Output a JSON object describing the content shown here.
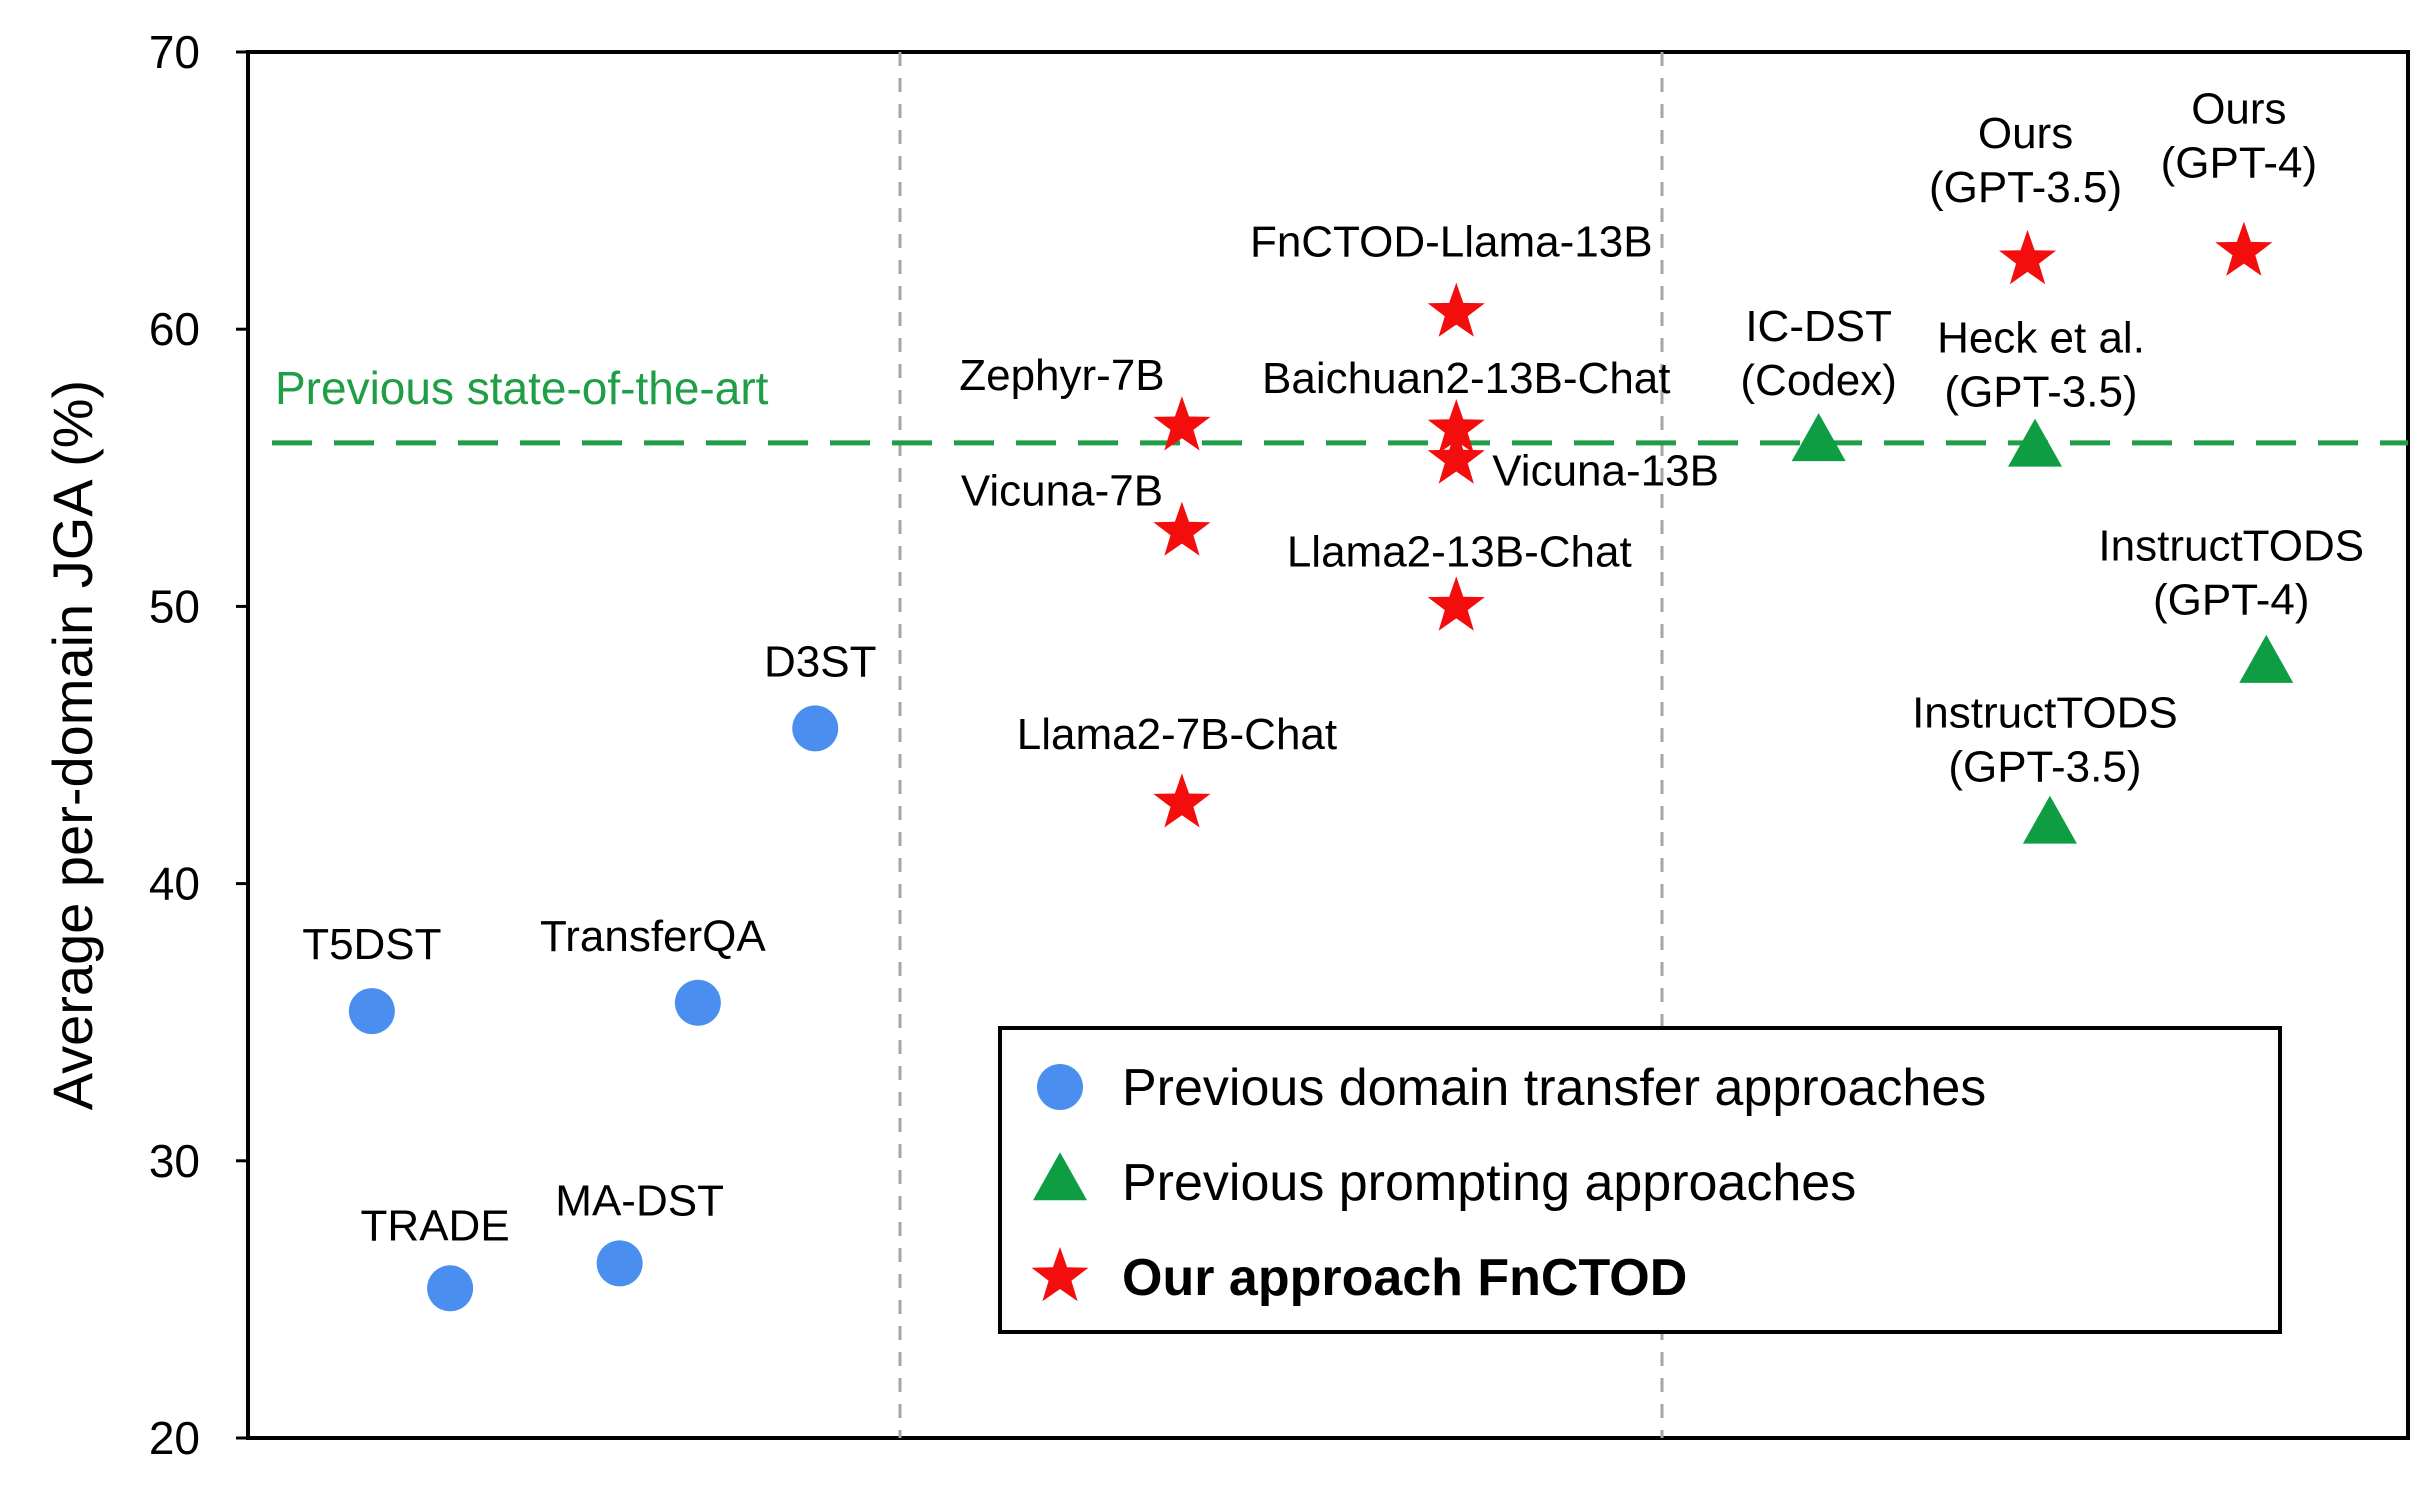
{
  "chart_data": {
    "type": "scatter",
    "ylabel": "Average per-domain JGA (%)",
    "ylim": [
      20,
      70
    ],
    "yticks": [
      20,
      30,
      40,
      50,
      60,
      70
    ],
    "grid": false,
    "legend_position": "bottom-right",
    "colors": {
      "domain_transfer": "#4a8ff0",
      "prompting": "#0f9d44",
      "fnctod": "#f40d0d",
      "reference": "#1e9e45",
      "divider": "#a6a6a6"
    },
    "reference_line": {
      "y": 55.9,
      "label": "Previous state-of-the-art"
    },
    "legend": [
      {
        "series": "domain_transfer",
        "label": "Previous domain transfer approaches",
        "marker": "circle"
      },
      {
        "series": "prompting",
        "label": "Previous prompting approaches",
        "marker": "triangle"
      },
      {
        "series": "fnctod",
        "label": "Our approach FnCTOD",
        "marker": "star",
        "bold": true
      }
    ],
    "points": [
      {
        "series": "domain_transfer",
        "group": 1,
        "x": 0.19,
        "y": 35.4,
        "label": [
          "T5DST"
        ]
      },
      {
        "series": "domain_transfer",
        "group": 1,
        "x": 0.31,
        "y": 25.4,
        "label": [
          "TRADE"
        ]
      },
      {
        "series": "domain_transfer",
        "group": 1,
        "x": 0.57,
        "y": 26.3,
        "label": [
          "MA-DST"
        ]
      },
      {
        "series": "domain_transfer",
        "group": 1,
        "x": 0.69,
        "y": 35.7,
        "label": [
          "TransferQA"
        ]
      },
      {
        "series": "domain_transfer",
        "group": 1,
        "x": 0.87,
        "y": 45.6,
        "label": [
          "D3ST"
        ]
      },
      {
        "series": "fnctod",
        "group": 2,
        "x": 0.37,
        "y": 56.5,
        "label": [
          "Zephyr-7B"
        ]
      },
      {
        "series": "fnctod",
        "group": 2,
        "x": 0.37,
        "y": 52.7,
        "label": [
          "Vicuna-7B"
        ]
      },
      {
        "series": "fnctod",
        "group": 2,
        "x": 0.37,
        "y": 42.9,
        "label": [
          "Llama2-7B-Chat"
        ]
      },
      {
        "series": "fnctod",
        "group": 2,
        "x": 0.73,
        "y": 60.6,
        "label": [
          "FnCTOD-Llama-13B"
        ]
      },
      {
        "series": "fnctod",
        "group": 2,
        "x": 0.73,
        "y": 56.4,
        "label": [
          "Baichuan2-13B-Chat"
        ]
      },
      {
        "series": "fnctod",
        "group": 2,
        "x": 0.73,
        "y": 55.3,
        "label": [
          "Vicuna-13B"
        ]
      },
      {
        "series": "fnctod",
        "group": 2,
        "x": 0.73,
        "y": 50.0,
        "label": [
          "Llama2-13B-Chat"
        ]
      },
      {
        "series": "prompting",
        "group": 3,
        "x": 0.21,
        "y": 55.9,
        "label": [
          "IC-DST",
          "(Codex)"
        ]
      },
      {
        "series": "prompting",
        "group": 3,
        "x": 0.5,
        "y": 55.7,
        "label": [
          "Heck et al.",
          "(GPT-3.5)"
        ]
      },
      {
        "series": "prompting",
        "group": 3,
        "x": 0.52,
        "y": 42.1,
        "label": [
          "InstructTODS",
          "(GPT-3.5)"
        ]
      },
      {
        "series": "prompting",
        "group": 3,
        "x": 0.81,
        "y": 47.9,
        "label": [
          "InstructTODS",
          "(GPT-4)"
        ]
      },
      {
        "series": "fnctod",
        "group": 3,
        "x": 0.49,
        "y": 62.5,
        "label": [
          "Ours",
          "(GPT-3.5)"
        ]
      },
      {
        "series": "fnctod",
        "group": 3,
        "x": 0.78,
        "y": 62.8,
        "label": [
          "Ours",
          "(GPT-4)"
        ]
      }
    ]
  }
}
